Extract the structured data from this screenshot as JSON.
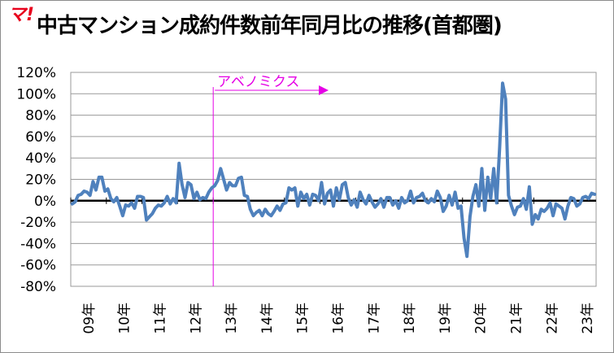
{
  "window": {
    "title": "中古マンション成約件数前年同月比の推移(首都圏)",
    "logo_text": "マ!"
  },
  "chart_data": {
    "type": "line",
    "title": "中古マンション成約件数前年同月比の推移(首都圏)",
    "xlabel": "",
    "ylabel": "",
    "ylim": [
      -80,
      120
    ],
    "yticks": [
      "120%",
      "100%",
      "80%",
      "60%",
      "40%",
      "20%",
      "0%",
      "-20%",
      "-40%",
      "-60%",
      "-80%"
    ],
    "ytick_values": [
      120,
      100,
      80,
      60,
      40,
      20,
      0,
      -20,
      -40,
      -60,
      -80
    ],
    "xticks": [
      "09年",
      "10年",
      "11年",
      "12年",
      "13年",
      "14年",
      "15年",
      "16年",
      "17年",
      "18年",
      "19年",
      "20年",
      "21年",
      "22年",
      "23年"
    ],
    "grid": true,
    "legend": "none",
    "series_color": "#4f81bd",
    "annotation": {
      "label": "アベノミクス",
      "month_index": 48,
      "color": "#e600e6"
    },
    "series": [
      {
        "values": [
          -3,
          -1,
          5,
          6,
          9,
          8,
          5,
          18,
          10,
          22,
          22,
          9,
          11,
          2,
          -1,
          3,
          -5,
          -14,
          -4,
          -5,
          -2,
          -7,
          4,
          4,
          3,
          -18,
          -15,
          -12,
          -7,
          -4,
          -5,
          -2,
          4,
          -3,
          2,
          -2,
          35,
          15,
          3,
          17,
          15,
          2,
          8,
          1,
          3,
          2,
          8,
          12,
          14,
          19,
          30,
          20,
          10,
          17,
          14,
          14,
          21,
          22,
          5,
          4,
          -8,
          -14,
          -11,
          -9,
          -14,
          -8,
          -12,
          -14,
          -10,
          -5,
          -9,
          -3,
          -2,
          12,
          10,
          12,
          -5,
          8,
          2,
          6,
          -4,
          6,
          5,
          0,
          17,
          -3,
          7,
          10,
          -5,
          12,
          1,
          15,
          17,
          3,
          -4,
          1,
          -6,
          8,
          1,
          -3,
          5,
          -1,
          -6,
          -3,
          2,
          -6,
          3,
          3,
          -4,
          0,
          -7,
          3,
          -2,
          0,
          9,
          -2,
          3,
          4,
          7,
          0,
          -2,
          2,
          -1,
          9,
          3,
          -10,
          -5,
          5,
          -4,
          8,
          -7,
          -5,
          -35,
          -52,
          -15,
          4,
          15,
          -5,
          30,
          -9,
          22,
          2,
          30,
          -2,
          50,
          110,
          95,
          5,
          -5,
          -13,
          -6,
          -5,
          2,
          -8,
          13,
          -22,
          -13,
          -17,
          -8,
          -10,
          -7,
          -2,
          -14,
          -3,
          -5,
          -7,
          -17,
          -5,
          3,
          2,
          -5,
          -3,
          3,
          4,
          2,
          7,
          6
        ]
      }
    ]
  }
}
